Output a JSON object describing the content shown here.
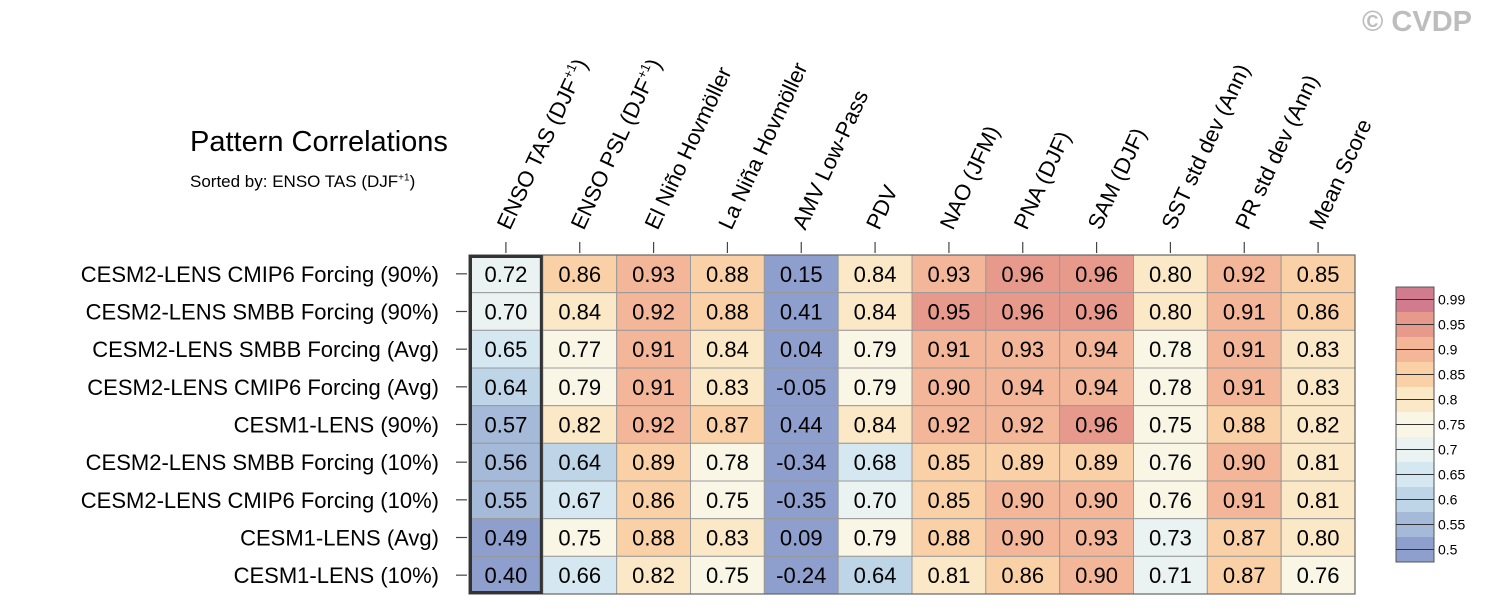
{
  "watermark": "© CVDP",
  "chart_data": {
    "type": "heatmap",
    "title": "Pattern Correlations",
    "subtitle": "Sorted by: ENSO TAS (DJF",
    "subtitle_sup": "+1",
    "subtitle_end": ")",
    "columns": [
      {
        "label": "ENSO TAS (DJF",
        "sup": "+1",
        "end": ")"
      },
      {
        "label": "ENSO PSL (DJF",
        "sup": "+1",
        "end": ")"
      },
      {
        "label": "El Niño Hovmöller"
      },
      {
        "label": "La Niña Hovmöller"
      },
      {
        "label": "AMV Low-Pass"
      },
      {
        "label": "PDV"
      },
      {
        "label": "NAO (JFM)"
      },
      {
        "label": "PNA (DJF)"
      },
      {
        "label": "SAM (DJF)"
      },
      {
        "label": "SST std dev (Ann)"
      },
      {
        "label": "PR std dev (Ann)"
      },
      {
        "label": "Mean Score"
      }
    ],
    "rows": [
      "CESM2-LENS CMIP6 Forcing (90%)",
      "CESM2-LENS SMBB Forcing (90%)",
      "CESM2-LENS SMBB Forcing (Avg)",
      "CESM2-LENS CMIP6 Forcing (Avg)",
      "CESM1-LENS (90%)",
      "CESM2-LENS SMBB Forcing (10%)",
      "CESM2-LENS CMIP6 Forcing (10%)",
      "CESM1-LENS (Avg)",
      "CESM1-LENS (10%)"
    ],
    "values": [
      [
        "0.72",
        "0.86",
        "0.93",
        "0.88",
        "0.15",
        "0.84",
        "0.93",
        "0.96",
        "0.96",
        "0.80",
        "0.92",
        "0.85"
      ],
      [
        "0.70",
        "0.84",
        "0.92",
        "0.88",
        "0.41",
        "0.84",
        "0.95",
        "0.96",
        "0.96",
        "0.80",
        "0.91",
        "0.86"
      ],
      [
        "0.65",
        "0.77",
        "0.91",
        "0.84",
        "0.04",
        "0.79",
        "0.91",
        "0.93",
        "0.94",
        "0.78",
        "0.91",
        "0.83"
      ],
      [
        "0.64",
        "0.79",
        "0.91",
        "0.83",
        "-0.05",
        "0.79",
        "0.90",
        "0.94",
        "0.94",
        "0.78",
        "0.91",
        "0.83"
      ],
      [
        "0.57",
        "0.82",
        "0.92",
        "0.87",
        "0.44",
        "0.84",
        "0.92",
        "0.92",
        "0.96",
        "0.75",
        "0.88",
        "0.82"
      ],
      [
        "0.56",
        "0.64",
        "0.89",
        "0.78",
        "-0.34",
        "0.68",
        "0.85",
        "0.89",
        "0.89",
        "0.76",
        "0.90",
        "0.81"
      ],
      [
        "0.55",
        "0.67",
        "0.86",
        "0.75",
        "-0.35",
        "0.70",
        "0.85",
        "0.90",
        "0.90",
        "0.76",
        "0.91",
        "0.81"
      ],
      [
        "0.49",
        "0.75",
        "0.88",
        "0.83",
        "0.09",
        "0.79",
        "0.88",
        "0.90",
        "0.93",
        "0.73",
        "0.87",
        "0.80"
      ],
      [
        "0.40",
        "0.66",
        "0.82",
        "0.75",
        "-0.24",
        "0.64",
        "0.81",
        "0.86",
        "0.90",
        "0.71",
        "0.87",
        "0.76"
      ]
    ],
    "highlighted_column": 0,
    "colorbar": {
      "levels": [
        0.5,
        0.55,
        0.6,
        0.65,
        0.7,
        0.75,
        0.8,
        0.85,
        0.9,
        0.95,
        0.99
      ],
      "labels": [
        "0.5",
        "0.55",
        "0.6",
        "0.65",
        "0.7",
        "0.75",
        "0.8",
        "0.85",
        "0.9",
        "0.95",
        "0.99"
      ],
      "colors": [
        "#8e9fcd",
        "#a5b9d9",
        "#bed5e8",
        "#d5e8f1",
        "#ebf3f2",
        "#faf6e6",
        "#fbe8c6",
        "#fad1a6",
        "#f3b698",
        "#e79a8c",
        "#d07c8e"
      ]
    }
  }
}
